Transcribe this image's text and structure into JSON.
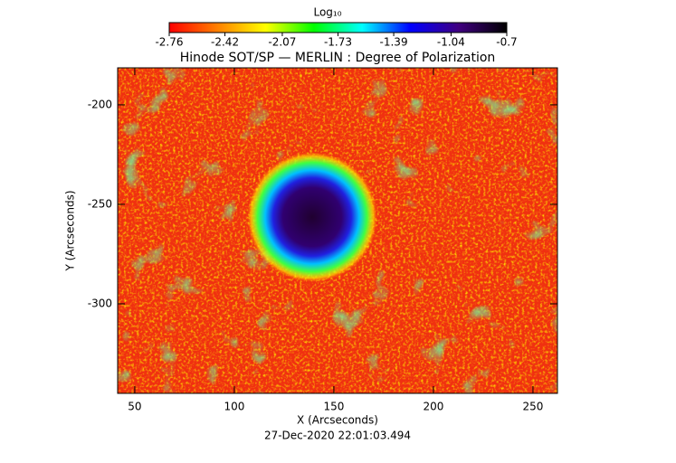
{
  "chart_data": {
    "type": "heatmap",
    "title": "Hinode SOT/SP — MERLIN : Degree of Polarization",
    "x_label": "X (Arcseconds)",
    "y_label": "Y (Arcseconds)",
    "footer": "27-Dec-2020 22:01:03.494",
    "colorbar_label": "Log₁₀",
    "colormap": [
      "#ff0000",
      "#ff8000",
      "#ffff00",
      "#00ff00",
      "#00ffff",
      "#0000ff",
      "#400080",
      "#000000"
    ],
    "clim": [
      -2.76,
      -0.7
    ],
    "colorbar_ticks": [
      -2.76,
      -2.42,
      -2.07,
      -1.73,
      -1.39,
      -1.04,
      -0.7
    ],
    "xlim": [
      41.4,
      262.3
    ],
    "xticks": [
      50,
      100,
      150,
      200,
      250
    ],
    "ylim": [
      -345,
      -181.4
    ],
    "yticks": [
      -200,
      -250,
      -300
    ]
  }
}
